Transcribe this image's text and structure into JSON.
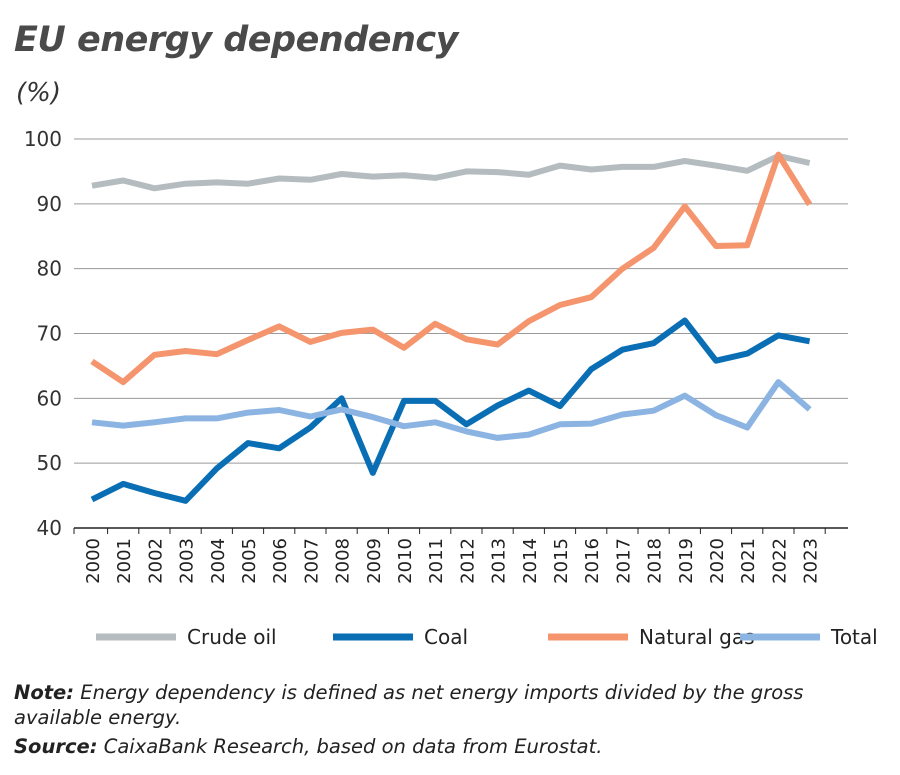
{
  "chart_data": {
    "type": "line",
    "title": "EU energy dependency",
    "ylabel": "(%)",
    "xlabel": "",
    "ylim": [
      40,
      100
    ],
    "yticks": [
      40,
      50,
      60,
      70,
      80,
      90,
      100
    ],
    "grid": true,
    "legend_position": "bottom",
    "categories": [
      "2000",
      "2001",
      "2002",
      "2003",
      "2004",
      "2005",
      "2006",
      "2007",
      "2008",
      "2009",
      "2010",
      "2011",
      "2012",
      "2013",
      "2014",
      "2015",
      "2016",
      "2017",
      "2018",
      "2019",
      "2020",
      "2021",
      "2022",
      "2023"
    ],
    "series": [
      {
        "name": "Crude oil",
        "color": "#b5bcc0",
        "values": [
          92.8,
          93.6,
          92.4,
          93.1,
          93.3,
          93.1,
          93.9,
          93.7,
          94.6,
          94.2,
          94.4,
          94.0,
          95.0,
          94.9,
          94.5,
          95.9,
          95.3,
          95.7,
          95.7,
          96.6,
          95.9,
          95.1,
          97.4,
          96.3
        ]
      },
      {
        "name": "Coal",
        "color": "#0a6eb4",
        "values": [
          44.4,
          46.8,
          45.4,
          44.2,
          49.2,
          53.1,
          52.3,
          55.5,
          60.0,
          48.5,
          59.6,
          59.6,
          56.0,
          58.9,
          61.2,
          58.8,
          64.5,
          67.5,
          68.5,
          72.0,
          65.8,
          66.9,
          69.7,
          68.8
        ]
      },
      {
        "name": "Natural gas",
        "color": "#f4956e",
        "values": [
          65.7,
          62.5,
          66.7,
          67.3,
          66.8,
          69.0,
          71.1,
          68.7,
          70.1,
          70.6,
          67.8,
          71.5,
          69.1,
          68.3,
          71.9,
          74.4,
          75.6,
          80.0,
          83.2,
          89.6,
          83.5,
          83.6,
          97.6,
          89.9
        ]
      },
      {
        "name": "Total",
        "color": "#8cb4e2",
        "values": [
          56.3,
          55.8,
          56.3,
          56.9,
          56.9,
          57.8,
          58.2,
          57.2,
          58.3,
          57.1,
          55.7,
          56.3,
          54.9,
          53.9,
          54.4,
          56.0,
          56.1,
          57.5,
          58.1,
          60.4,
          57.4,
          55.5,
          62.5,
          58.3
        ]
      }
    ]
  },
  "note": {
    "label": "Note:",
    "text": " Energy dependency is defined as net energy imports divided by the gross available energy."
  },
  "source": {
    "label": "Source:",
    "text": " CaixaBank Research, based on data from Eurostat."
  }
}
